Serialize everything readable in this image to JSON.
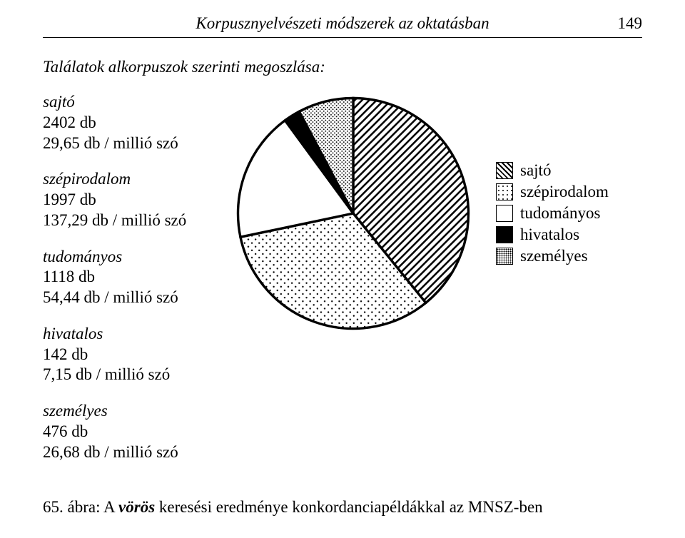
{
  "header": {
    "running_title": "Korpusznyelvészeti módszerek az oktatásban",
    "page_number": "149"
  },
  "section_title": "Találatok alkorpuszok szerinti megoszlása:",
  "categories": [
    {
      "key": "sajto",
      "label": "sajtó",
      "count_line": "2402 db",
      "rate_line": "29,65 db / millió szó"
    },
    {
      "key": "szepirodalom",
      "label": "szépirodalom",
      "count_line": "1997 db",
      "rate_line": "137,29 db / millió szó"
    },
    {
      "key": "tudomanyos",
      "label": "tudományos",
      "count_line": "1118 db",
      "rate_line": "54,44 db / millió szó"
    },
    {
      "key": "hivatalos",
      "label": "hivatalos",
      "count_line": "142 db",
      "rate_line": "7,15 db / millió szó"
    },
    {
      "key": "szemelyes",
      "label": "személyes",
      "count_line": "476 db",
      "rate_line": "26,68 db / millió szó"
    }
  ],
  "pie": {
    "type": "pie",
    "background_color": "#ffffff",
    "stroke_color": "#000000",
    "stroke_width": 2,
    "slices": [
      {
        "key": "sajto",
        "value": 2402,
        "pattern": "diag-hatch"
      },
      {
        "key": "szepirodalom",
        "value": 1997,
        "pattern": "sparse-dots"
      },
      {
        "key": "tudomanyos",
        "value": 1118,
        "pattern": "white"
      },
      {
        "key": "hivatalos",
        "value": 142,
        "pattern": "black"
      },
      {
        "key": "szemelyes",
        "value": 476,
        "pattern": "dense-dots"
      }
    ],
    "start_angle_deg": -90,
    "direction": "clockwise"
  },
  "legend": {
    "items": [
      {
        "label": "sajtó",
        "pattern": "diag-hatch"
      },
      {
        "label": "szépirodalom",
        "pattern": "sparse-dots"
      },
      {
        "label": "tudományos",
        "pattern": "white"
      },
      {
        "label": "hivatalos",
        "pattern": "black"
      },
      {
        "label": "személyes",
        "pattern": "dense-dots"
      }
    ]
  },
  "caption": {
    "fignum": "65. ábra: ",
    "keyword_prefix": "A ",
    "keyword": "vörös",
    "rest": " keresési eredménye konkordanciapéldákkal az MNSZ-ben"
  }
}
